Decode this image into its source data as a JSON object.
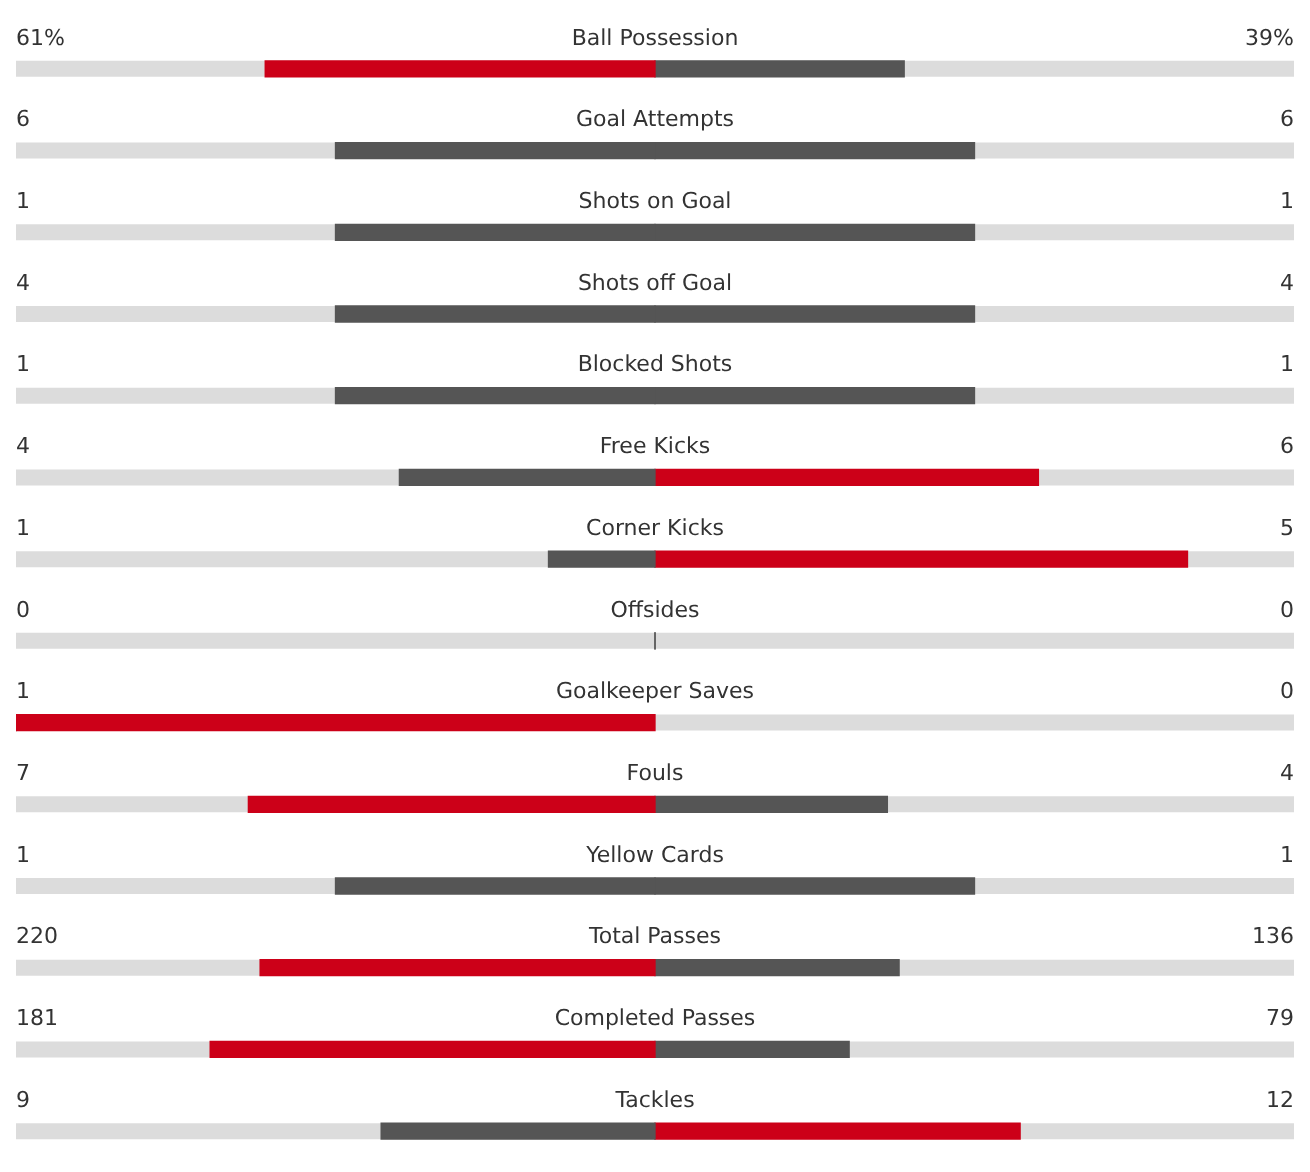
{
  "chart_data": {
    "type": "other",
    "categories": [
      "Ball Possession",
      "Goal Attempts",
      "Shots on Goal",
      "Shots off Goal",
      "Blocked Shots",
      "Free Kicks",
      "Corner Kicks",
      "Offsides",
      "Goalkeeper Saves",
      "Fouls",
      "Yellow Cards",
      "Total Passes",
      "Completed Passes",
      "Tackles"
    ],
    "series": [
      {
        "values": [
          61,
          6,
          1,
          4,
          1,
          4,
          1,
          0,
          1,
          7,
          1,
          220,
          181,
          9
        ],
        "colors": [
          "#cc0018",
          "#555555",
          "#555555",
          "#555555",
          "#555555",
          "#555555",
          "#555555",
          "#555555",
          "#cc0018",
          "#cc0018",
          "#555555",
          "#cc0018",
          "#cc0018",
          "#555555"
        ],
        "value_labels": [
          "61%",
          "6",
          "1",
          "4",
          "1",
          "4",
          "1",
          "0",
          "1",
          "7",
          "1",
          "220",
          "181",
          "9"
        ]
      },
      {
        "values": [
          39,
          6,
          1,
          4,
          1,
          6,
          5,
          0,
          0,
          4,
          1,
          136,
          79,
          12
        ],
        "colors": [
          "#555555",
          "#555555",
          "#555555",
          "#555555",
          "#555555",
          "#cc0018",
          "#cc0018",
          "#555555",
          "#555555",
          "#555555",
          "#555555",
          "#555555",
          "#555555",
          "#cc0018"
        ],
        "value_labels": [
          "39%",
          "6",
          "1",
          "4",
          "1",
          "6",
          "5",
          "0",
          "0",
          "4",
          "1",
          "136",
          "79",
          "12"
        ]
      }
    ]
  }
}
